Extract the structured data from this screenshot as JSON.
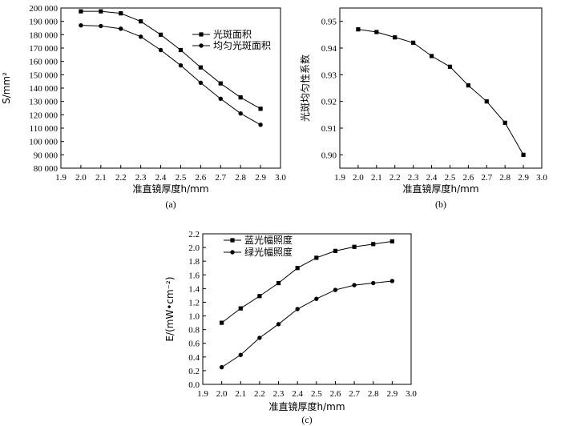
{
  "chart_data": [
    {
      "id": "a",
      "type": "line",
      "caption": "(a)",
      "xlabel": "准直镜厚度h/mm",
      "ylabel": "S/mm²",
      "xlim": [
        1.9,
        3.0
      ],
      "ylim": [
        80000,
        200000
      ],
      "xticks": [
        "1.9",
        "2.0",
        "2.1",
        "2.2",
        "2.3",
        "2.4",
        "2.5",
        "2.6",
        "2.7",
        "2.8",
        "2.9",
        "3.0"
      ],
      "yticks": [
        "80 000",
        "90 000",
        "100 000",
        "110 000",
        "120 000",
        "130 000",
        "140 000",
        "150 000",
        "160 000",
        "170 000",
        "180 000",
        "190 000",
        "200 000"
      ],
      "x": [
        2.0,
        2.1,
        2.2,
        2.3,
        2.4,
        2.5,
        2.6,
        2.7,
        2.8,
        2.9
      ],
      "legend_position": "top-right",
      "series": [
        {
          "name": "光斑面积",
          "marker": "square",
          "values": [
            197500,
            197500,
            196000,
            190000,
            180000,
            168500,
            155500,
            143500,
            133000,
            124500
          ]
        },
        {
          "name": "均匀光斑面积",
          "marker": "circle",
          "values": [
            187000,
            186500,
            184500,
            178500,
            168500,
            157000,
            144000,
            132000,
            121000,
            112500
          ]
        }
      ]
    },
    {
      "id": "b",
      "type": "line",
      "caption": "(b)",
      "xlabel": "准直镜厚度h/mm",
      "ylabel": "光斑均匀性系数",
      "xlim": [
        1.9,
        3.0
      ],
      "ylim": [
        0.895,
        0.955
      ],
      "xticks": [
        "1.9",
        "2.0",
        "2.1",
        "2.2",
        "2.3",
        "2.4",
        "2.5",
        "2.6",
        "2.7",
        "2.8",
        "2.9",
        "3.0"
      ],
      "yticks": [
        "0.90",
        "0.91",
        "0.92",
        "0.93",
        "0.94",
        "0.95"
      ],
      "x": [
        2.0,
        2.1,
        2.2,
        2.3,
        2.4,
        2.5,
        2.6,
        2.7,
        2.8,
        2.9
      ],
      "series": [
        {
          "name": "",
          "marker": "square",
          "values": [
            0.947,
            0.946,
            0.944,
            0.942,
            0.937,
            0.933,
            0.926,
            0.92,
            0.912,
            0.9
          ]
        }
      ]
    },
    {
      "id": "c",
      "type": "line",
      "caption": "(c)",
      "xlabel": "准直镜厚度h/mm",
      "ylabel": "E/(mW•cm⁻²)",
      "xlim": [
        1.9,
        3.0
      ],
      "ylim": [
        0.0,
        2.2
      ],
      "xticks": [
        "1.9",
        "2.0",
        "2.1",
        "2.2",
        "2.3",
        "2.4",
        "2.5",
        "2.6",
        "2.7",
        "2.8",
        "2.9",
        "3.0"
      ],
      "yticks": [
        "0.0",
        "0.2",
        "0.4",
        "0.6",
        "0.8",
        "1.0",
        "1.2",
        "1.4",
        "1.6",
        "1.8",
        "2.0",
        "2.2"
      ],
      "x": [
        2.0,
        2.1,
        2.2,
        2.3,
        2.4,
        2.5,
        2.6,
        2.7,
        2.8,
        2.9
      ],
      "legend_position": "top-left",
      "series": [
        {
          "name": "蓝光幅照度",
          "marker": "square",
          "values": [
            0.9,
            1.11,
            1.29,
            1.48,
            1.7,
            1.85,
            1.95,
            2.01,
            2.05,
            2.09
          ]
        },
        {
          "name": "绿光幅照度",
          "marker": "circle",
          "values": [
            0.25,
            0.43,
            0.68,
            0.88,
            1.1,
            1.25,
            1.38,
            1.45,
            1.48,
            1.51
          ]
        }
      ]
    }
  ]
}
